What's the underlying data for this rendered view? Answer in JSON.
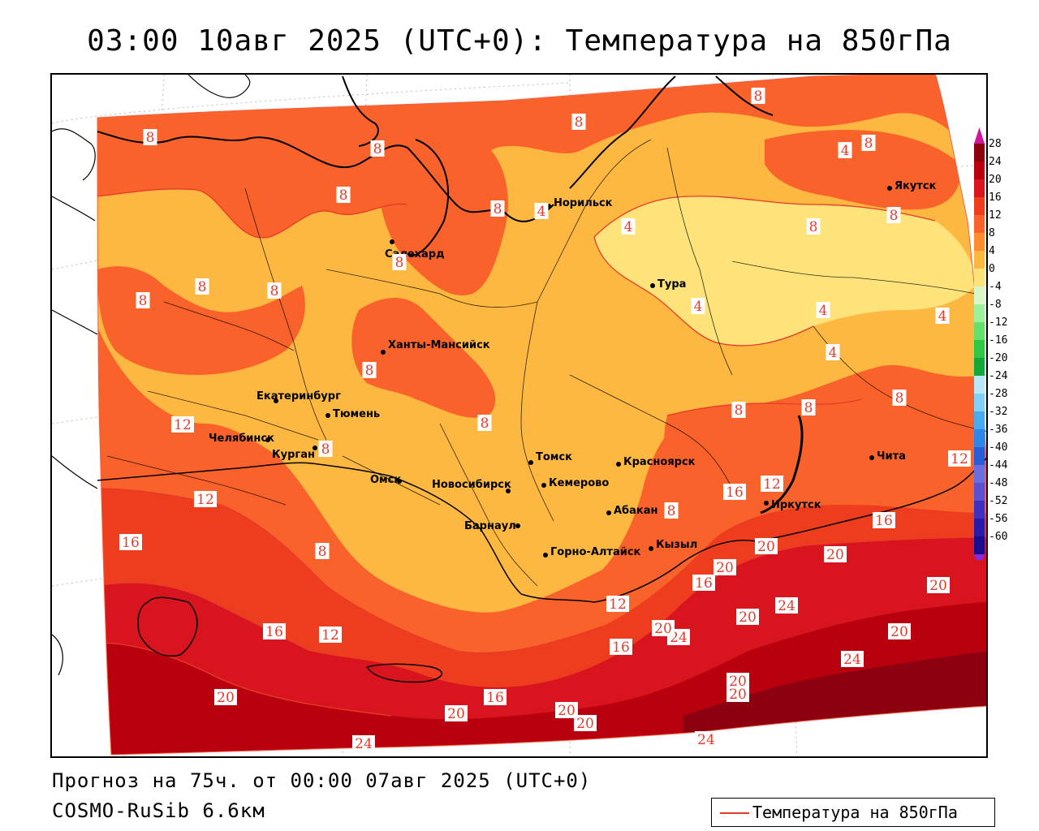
{
  "title": "03:00 10авг 2025 (UTC+0): Температура на 850гПа",
  "footer": {
    "forecast": "Прогноз на 75ч. от 00:00 07авг 2025 (UTC+0)",
    "model": "COSMO-RuSib 6.6км"
  },
  "legend": {
    "label": "Температура на 850гПа",
    "line_color": "#e83a2a"
  },
  "colorbar": {
    "levels": [
      {
        "value": "28",
        "color": "#8c0010"
      },
      {
        "value": "24",
        "color": "#b8000f"
      },
      {
        "value": "20",
        "color": "#d8141e"
      },
      {
        "value": "16",
        "color": "#ee3d1e"
      },
      {
        "value": "12",
        "color": "#f9622a"
      },
      {
        "value": "8",
        "color": "#fd8c30"
      },
      {
        "value": "4",
        "color": "#fdb842"
      },
      {
        "value": "0",
        "color": "#fee27a"
      },
      {
        "value": "-4",
        "color": "#d8f7c8"
      },
      {
        "value": "-8",
        "color": "#9ef09a"
      },
      {
        "value": "-12",
        "color": "#66e06a"
      },
      {
        "value": "-16",
        "color": "#2ec844"
      },
      {
        "value": "-20",
        "color": "#12a83a"
      },
      {
        "value": "-24",
        "color": "#b8e8f8"
      },
      {
        "value": "-28",
        "color": "#82d0f4"
      },
      {
        "value": "-32",
        "color": "#4aaaf0"
      },
      {
        "value": "-36",
        "color": "#2e86e8"
      },
      {
        "value": "-40",
        "color": "#2a5ed8"
      },
      {
        "value": "-44",
        "color": "#6a6ee0"
      },
      {
        "value": "-48",
        "color": "#5a50d0"
      },
      {
        "value": "-52",
        "color": "#4030c0"
      },
      {
        "value": "-56",
        "color": "#2a1aa8"
      },
      {
        "value": "-60",
        "color": "#1a0c8c"
      }
    ],
    "top_arrow_color": "#d0169a",
    "bottom_arrow_color": "#8a2ad8"
  },
  "cities": [
    {
      "name": "Норильск"
    },
    {
      "name": "Якутск"
    },
    {
      "name": "Салехард"
    },
    {
      "name": "Тура"
    },
    {
      "name": "Ханты-Мансийск"
    },
    {
      "name": "Екатеринбург"
    },
    {
      "name": "Тюмень"
    },
    {
      "name": "Челябинск"
    },
    {
      "name": "Курган"
    },
    {
      "name": "Омск"
    },
    {
      "name": "Новосибирск"
    },
    {
      "name": "Томск"
    },
    {
      "name": "Кемерово"
    },
    {
      "name": "Красноярск"
    },
    {
      "name": "Абакан"
    },
    {
      "name": "Барнаул"
    },
    {
      "name": "Горно-Алтайск"
    },
    {
      "name": "Кызыл"
    },
    {
      "name": "Иркутск"
    },
    {
      "name": "Чита"
    }
  ],
  "isotherm_labels": [
    "8",
    "8",
    "8",
    "8",
    "8",
    "4",
    "8",
    "8",
    "4",
    "4",
    "8",
    "8",
    "8",
    "8",
    "8",
    "8",
    "4",
    "4",
    "4",
    "4",
    "8",
    "8",
    "8",
    "8",
    "8",
    "12",
    "12",
    "8",
    "12",
    "16",
    "8",
    "16",
    "12",
    "16",
    "20",
    "8",
    "12",
    "16",
    "12",
    "16",
    "20",
    "20",
    "24",
    "20",
    "24",
    "20",
    "20",
    "20",
    "24",
    "20",
    "20",
    "20",
    "24",
    "20",
    "16",
    "20",
    "24",
    "20",
    "16"
  ]
}
